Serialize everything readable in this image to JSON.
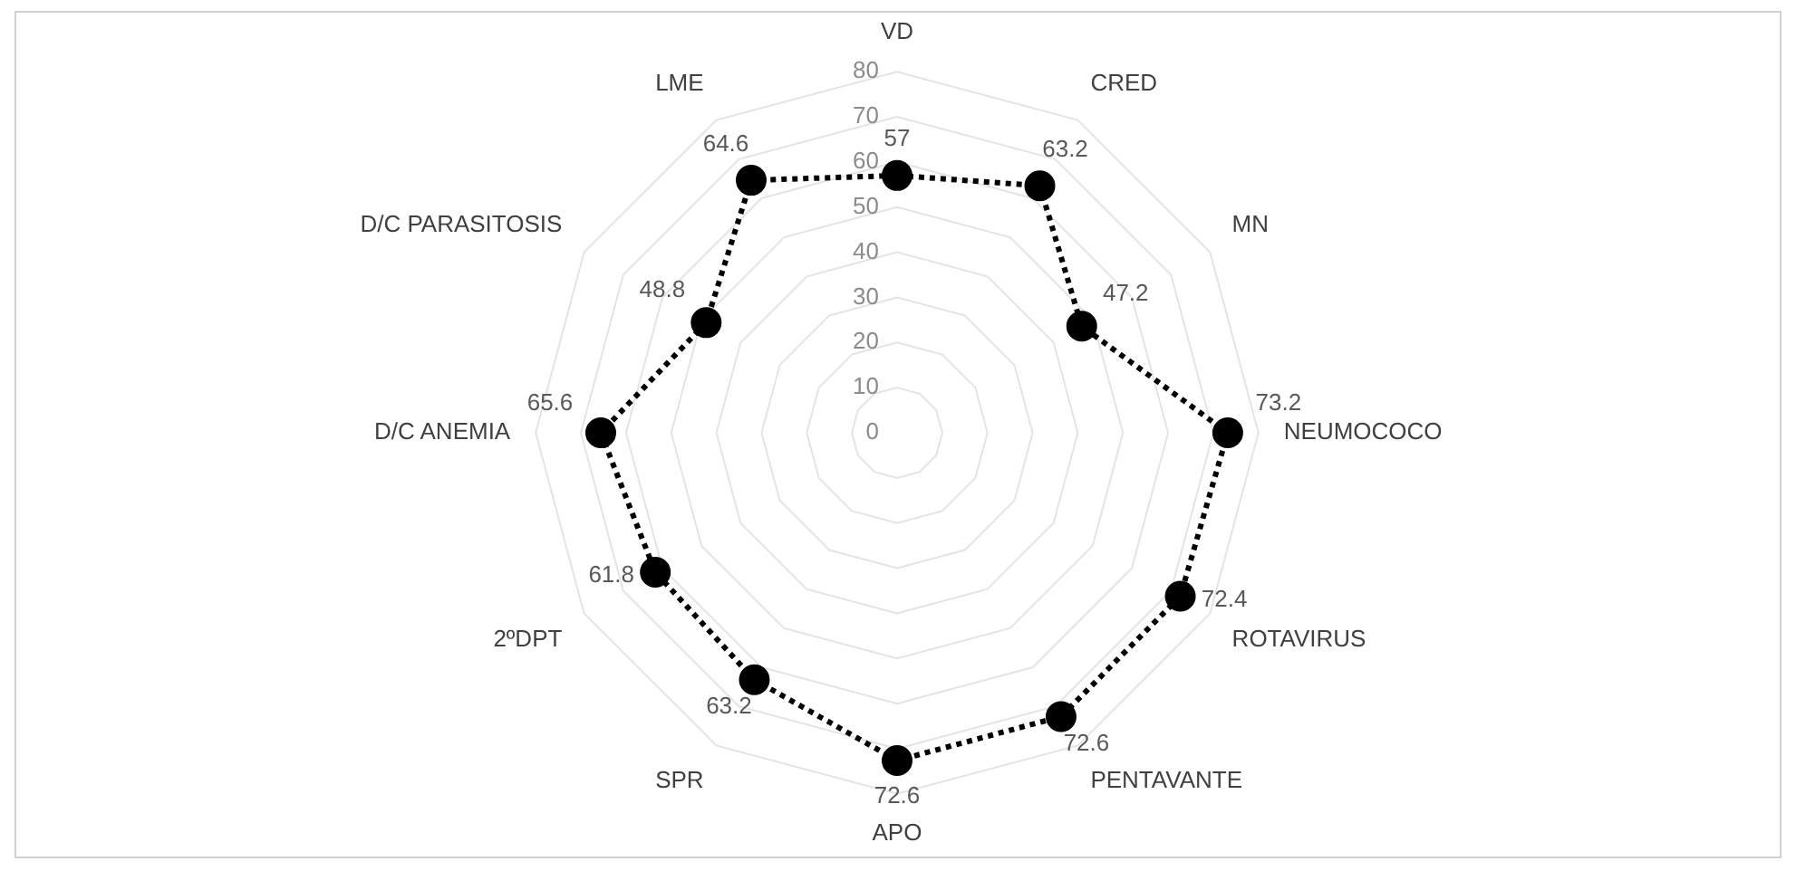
{
  "chart_data": {
    "type": "radar",
    "categories": [
      "VD",
      "CRED",
      "MN",
      "NEUMOCOCO",
      "ROTAVIRUS",
      "PENTAVANTE",
      "APO",
      "SPR",
      "2ºDPT",
      "D/C ANEMIA",
      "D/C PARASITOSIS",
      "LME"
    ],
    "series": [
      {
        "color": "#000000",
        "values": [
          57,
          63.2,
          47.2,
          73.2,
          72.4,
          72.6,
          72.6,
          63.2,
          61.8,
          65.6,
          48.8,
          64.6
        ]
      }
    ],
    "ylim": [
      0,
      80
    ],
    "yticks": [
      0,
      10,
      20,
      30,
      40,
      50,
      60,
      70,
      80
    ],
    "grid": true,
    "legend": false,
    "marker": "circle",
    "line_style": "dotted",
    "data_labels": true
  }
}
